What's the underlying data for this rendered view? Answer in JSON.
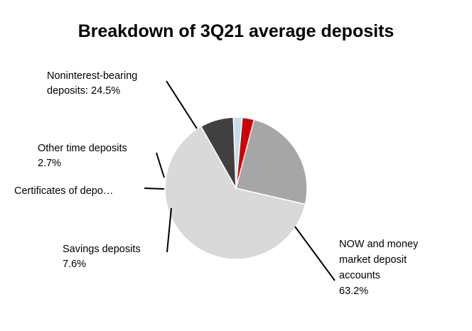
{
  "chart_data": {
    "type": "pie",
    "title": "Breakdown of 3Q21 average deposits",
    "slices": [
      {
        "name": "NOW and money market deposit accounts",
        "value": 63.2,
        "color": "#d9d9d9",
        "label_lines": [
          "NOW and money",
          "market deposit",
          "accounts",
          "63.2%"
        ]
      },
      {
        "name": "Savings deposits",
        "value": 7.6,
        "color": "#404040",
        "label_lines": [
          "Savings deposits",
          "7.6%"
        ]
      },
      {
        "name": "Certificates of deposit",
        "value": 2.0,
        "color": "#c5dde8",
        "label_lines": [
          "Certificates of depo…"
        ]
      },
      {
        "name": "Other time deposits",
        "value": 2.7,
        "color": "#cc0000",
        "label_lines": [
          "Other time deposits",
          "2.7%"
        ]
      },
      {
        "name": "Noninterest-bearing deposits",
        "value": 24.5,
        "color": "#a6a6a6",
        "label_lines": [
          "Noninterest-bearing",
          "deposits: 24.5%"
        ]
      }
    ]
  }
}
